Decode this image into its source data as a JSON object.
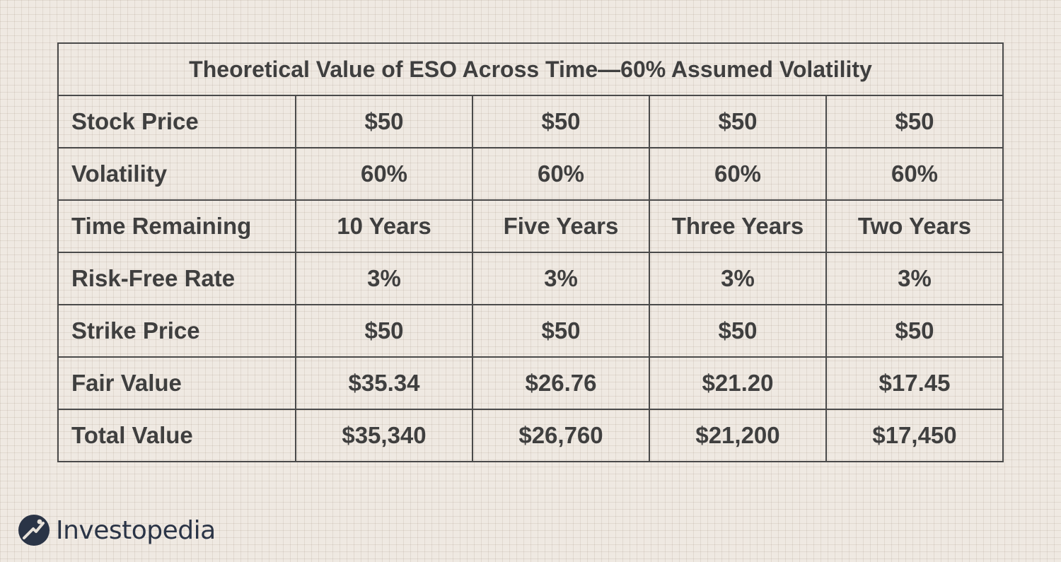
{
  "chart_data": {
    "type": "table",
    "title": "Theoretical Value of ESO Across Time—60% Assumed Volatility",
    "rows": [
      {
        "label": "Stock Price",
        "values": [
          "$50",
          "$50",
          "$50",
          "$50"
        ]
      },
      {
        "label": "Volatility",
        "values": [
          "60%",
          "60%",
          "60%",
          "60%"
        ]
      },
      {
        "label": "Time Remaining",
        "values": [
          "10 Years",
          "Five Years",
          "Three Years",
          "Two Years"
        ]
      },
      {
        "label": "Risk-Free Rate",
        "values": [
          "3%",
          "3%",
          "3%",
          "3%"
        ]
      },
      {
        "label": "Strike Price",
        "values": [
          "$50",
          "$50",
          "$50",
          "$50"
        ]
      },
      {
        "label": "Fair Value",
        "values": [
          "$35.34",
          "$26.76",
          "$21.20",
          "$17.45"
        ]
      },
      {
        "label": "Total Value",
        "values": [
          "$35,340",
          "$26,760",
          "$21,200",
          "$17,450"
        ]
      }
    ]
  },
  "brand": {
    "name": "Investopedia",
    "logo_icon": "investopedia-logo-icon",
    "mark_color": "#2a3446",
    "accent_color": "#e8e2da"
  },
  "colors": {
    "background": "#efe9e2",
    "border": "#4a4a4a",
    "text": "#3f3f3f"
  }
}
